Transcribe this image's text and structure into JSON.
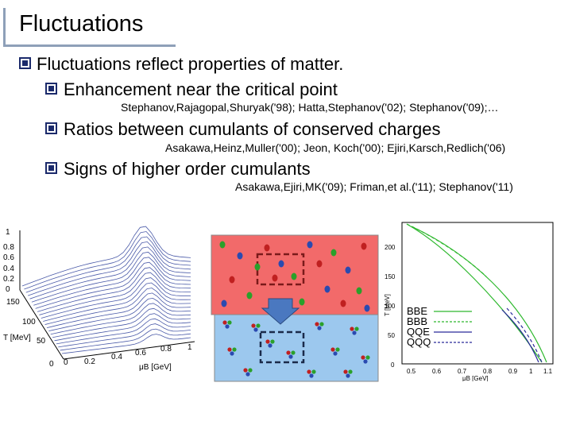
{
  "slide": {
    "title": "Fluctuations",
    "bullets": [
      {
        "text": "Fluctuations reflect properties of matter."
      },
      {
        "text": "Enhancement near the critical point",
        "ref": "Stephanov,Rajagopal,Shuryak('98); Hatta,Stephanov('02); Stephanov('09);…"
      },
      {
        "text": "Ratios between cumulants of conserved charges",
        "ref": "Asakawa,Heinz,Muller('00); Jeon, Koch('00); Ejiri,Karsch,Redlich('06)"
      },
      {
        "text": "Signs of higher order cumulants",
        "ref": "Asakawa,Ejiri,MK('09); Friman,et al.('11); Stephanov('11)"
      }
    ]
  },
  "plot3d": {
    "z_ticks": [
      "1",
      "0.8",
      "0.6",
      "0.4",
      "0.2",
      "0"
    ],
    "t_ticks": [
      "150",
      "100",
      "50",
      "0"
    ],
    "mu_ticks": [
      "0",
      "0.2",
      "0.4",
      "0.6",
      "0.8",
      "1"
    ],
    "t_label": "T [MeV]",
    "mu_label": "μB [GeV]"
  },
  "phase_plot": {
    "y_ticks": [
      "200",
      "150",
      "100",
      "50",
      "0"
    ],
    "x_ticks": [
      "0.5",
      "0.6",
      "0.7",
      "0.8",
      "0.9",
      "1",
      "1.1"
    ],
    "ylabel": "T [MeV]",
    "xlabel": "μB [GeV]",
    "legend": [
      {
        "label": "BBE",
        "color": "#2db82d",
        "dash": "solid"
      },
      {
        "label": "BBB",
        "color": "#2db82d",
        "dash": "dashed"
      },
      {
        "label": "QQE",
        "color": "#2a2a9a",
        "dash": "solid"
      },
      {
        "label": "QQQ",
        "color": "#2a2a9a",
        "dash": "dashed"
      }
    ]
  },
  "colors": {
    "bullet": "#1b2a6b",
    "top_box": "#f26a6a",
    "bottom_box": "#9cc8ee",
    "arrow": "#4a78c0"
  }
}
